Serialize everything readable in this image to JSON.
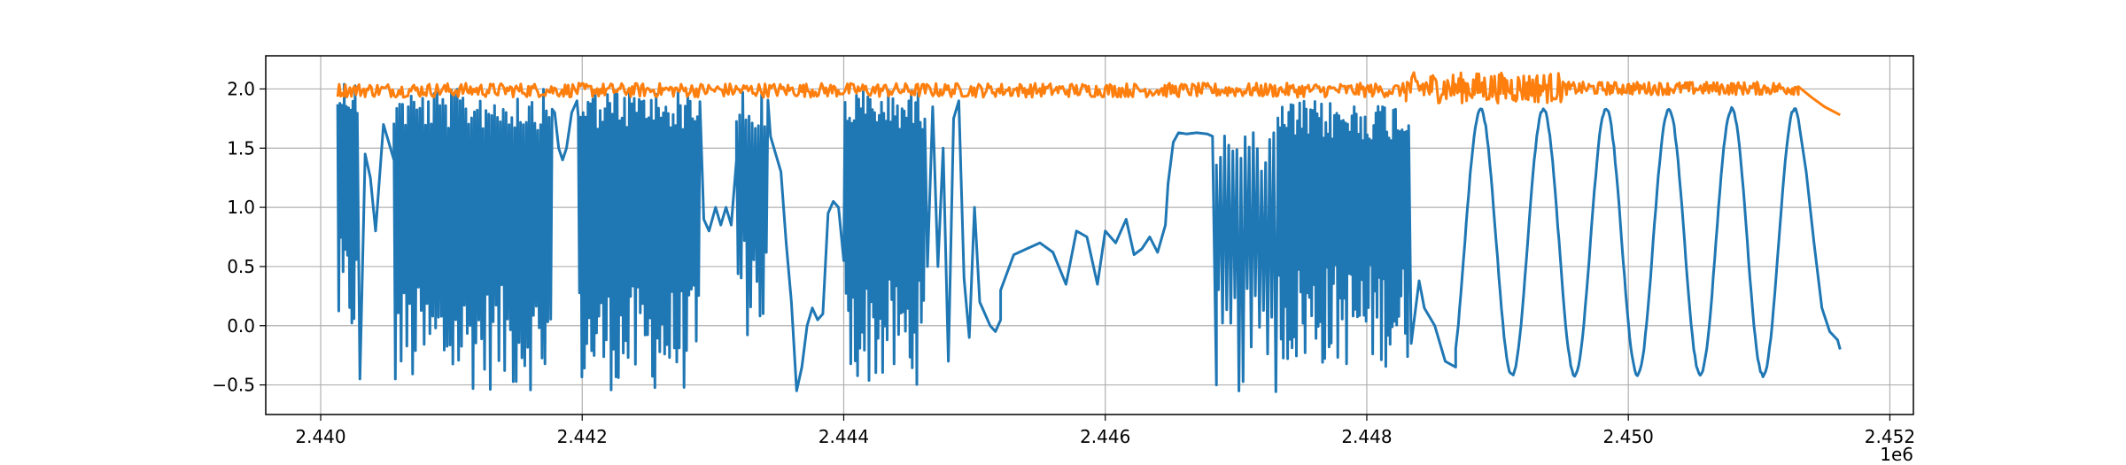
{
  "chart_data": {
    "type": "line",
    "title": "",
    "xlabel": "",
    "ylabel": "",
    "x_offset_label": "1e6",
    "xlim": [
      2439580,
      2452180
    ],
    "ylim": [
      -0.75,
      2.28
    ],
    "grid": true,
    "legend": "none",
    "xticks": [
      2440000,
      2442000,
      2444000,
      2446000,
      2448000,
      2450000,
      2452000
    ],
    "xtick_labels": [
      "2.440",
      "2.442",
      "2.444",
      "2.446",
      "2.448",
      "2.450",
      "2.452"
    ],
    "yticks": [
      -0.5,
      0.0,
      0.5,
      1.0,
      1.5,
      2.0
    ],
    "ytick_labels": [
      "−0.5",
      "0.0",
      "0.5",
      "1.0",
      "1.5",
      "2.0"
    ],
    "series": [
      {
        "color": "#1f77b4",
        "segments": [
          {
            "kind": "noisy",
            "x_start": 2440130,
            "x_end": 2440280,
            "low": -0.15,
            "high": 2.1,
            "n": 18
          },
          {
            "kind": "points",
            "x": [
              2440300,
              2440340,
              2440380,
              2440420,
              2440480,
              2440560
            ],
            "y": [
              -0.45,
              1.45,
              1.25,
              0.8,
              1.7,
              1.4
            ]
          },
          {
            "kind": "noisy",
            "x_start": 2440560,
            "x_end": 2441770,
            "low": -0.55,
            "high": 2.0,
            "n": 110
          },
          {
            "kind": "points",
            "x": [
              2441790,
              2441820,
              2441850,
              2441880,
              2441920,
              2441960
            ],
            "y": [
              1.8,
              1.5,
              1.4,
              1.5,
              1.8,
              1.9
            ]
          },
          {
            "kind": "noisy",
            "x_start": 2441970,
            "x_end": 2442900,
            "low": -0.55,
            "high": 2.0,
            "n": 100
          },
          {
            "kind": "points",
            "x": [
              2442930,
              2442970,
              2443020,
              2443060,
              2443100,
              2443140,
              2443180
            ],
            "y": [
              0.9,
              0.8,
              1.0,
              0.85,
              1.0,
              0.85,
              1.4
            ]
          },
          {
            "kind": "noisy",
            "x_start": 2443180,
            "x_end": 2443420,
            "low": -0.1,
            "high": 2.0,
            "n": 20
          },
          {
            "kind": "points",
            "x": [
              2443440,
              2443480,
              2443520,
              2443560,
              2443600,
              2443640,
              2443680,
              2443720,
              2443760,
              2443800,
              2443840,
              2443880,
              2443920,
              2443960,
              2444000
            ],
            "y": [
              1.6,
              1.45,
              1.3,
              0.7,
              0.2,
              -0.55,
              -0.35,
              0.0,
              0.15,
              0.05,
              0.1,
              0.95,
              1.05,
              1.0,
              0.55
            ]
          },
          {
            "kind": "noisy",
            "x_start": 2444010,
            "x_end": 2444620,
            "low": -0.5,
            "high": 2.0,
            "n": 70
          },
          {
            "kind": "points",
            "x": [
              2444640,
              2444680,
              2444720,
              2444760,
              2444800,
              2444840,
              2444880,
              2444920,
              2444960,
              2445000,
              2445040,
              2445080,
              2445120,
              2445160,
              2445200
            ],
            "y": [
              0.5,
              1.85,
              0.5,
              1.5,
              -0.3,
              1.75,
              1.9,
              0.4,
              -0.1,
              1.0,
              0.2,
              0.1,
              0.0,
              -0.05,
              0.05
            ]
          },
          {
            "kind": "points",
            "x": [
              2445200,
              2445300,
              2445400,
              2445500,
              2445600,
              2445700,
              2445780,
              2445860,
              2445940,
              2446000,
              2446080,
              2446160,
              2446220,
              2446280,
              2446340,
              2446400,
              2446460
            ],
            "y": [
              0.3,
              0.6,
              0.65,
              0.7,
              0.62,
              0.35,
              0.8,
              0.75,
              0.35,
              0.8,
              0.7,
              0.9,
              0.6,
              0.65,
              0.75,
              0.62,
              0.85
            ]
          },
          {
            "kind": "points",
            "x": [
              2446480,
              2446520,
              2446560,
              2446620,
              2446700,
              2446780,
              2446820,
              2446850
            ],
            "y": [
              1.2,
              1.55,
              1.63,
              1.62,
              1.63,
              1.62,
              1.6,
              -0.5
            ]
          },
          {
            "kind": "noisy",
            "x_start": 2446850,
            "x_end": 2447320,
            "low": -0.58,
            "high": 1.65,
            "n": 30
          },
          {
            "kind": "noisy",
            "x_start": 2447320,
            "x_end": 2448320,
            "low": -0.35,
            "high": 1.9,
            "n": 120
          },
          {
            "kind": "points",
            "x": [
              2448340,
              2448400,
              2448440,
              2448520,
              2448600,
              2448680
            ],
            "y": [
              -0.15,
              0.38,
              0.15,
              0.0,
              -0.3,
              -0.35
            ]
          },
          {
            "kind": "wave",
            "x_start": 2448680,
            "x_end": 2451320,
            "period": 480,
            "low": -0.42,
            "high": 1.83,
            "phase_start": 2448870
          },
          {
            "kind": "points",
            "x": [
              2451360,
              2451420,
              2451480,
              2451540,
              2451600,
              2451620
            ],
            "y": [
              1.3,
              0.7,
              0.15,
              -0.05,
              -0.12,
              -0.2
            ]
          }
        ]
      },
      {
        "color": "#ff7f0e",
        "segments": [
          {
            "kind": "noisy",
            "x_start": 2440130,
            "x_end": 2448300,
            "low": 1.93,
            "high": 2.05,
            "n": 700
          },
          {
            "kind": "noisy",
            "x_start": 2448300,
            "x_end": 2449500,
            "low": 1.88,
            "high": 2.14,
            "n": 140
          },
          {
            "kind": "noisy",
            "x_start": 2449500,
            "x_end": 2451300,
            "low": 1.95,
            "high": 2.06,
            "n": 200
          },
          {
            "kind": "points",
            "x": [
              2451300,
              2451400,
              2451500,
              2451620
            ],
            "y": [
              2.02,
              1.93,
              1.85,
              1.78
            ]
          }
        ]
      }
    ]
  }
}
